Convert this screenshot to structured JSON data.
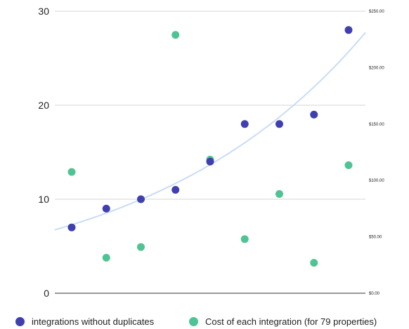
{
  "chart_data": {
    "type": "scatter",
    "title": "",
    "xlabel": "",
    "ylabel": "",
    "ylim": [
      0,
      30
    ],
    "y2lim": [
      0,
      250
    ],
    "y_ticks": [
      "0",
      "10",
      "20",
      "30"
    ],
    "y2_ticks": [
      "$0.00",
      "$50.00",
      "$100.00",
      "$150.00",
      "$200.00",
      "$250.00"
    ],
    "grid": true,
    "legend_position": "bottom",
    "x": [
      1,
      2,
      3,
      4,
      5,
      6,
      7,
      8,
      9
    ],
    "series": [
      {
        "name": "integrations without duplicates",
        "axis": "left",
        "color": "#3f3faf",
        "values": [
          7,
          9,
          10,
          11,
          14,
          18,
          18,
          19,
          28
        ]
      },
      {
        "name": "Cost of each integration (for 79 properties)",
        "axis": "right",
        "color": "#4fc394",
        "values": [
          107.5,
          31.5,
          41,
          229,
          118.5,
          48,
          88,
          27,
          113.5
        ]
      }
    ],
    "trendline": {
      "type": "exponential",
      "series": "integrations without duplicates",
      "color": "#c9dcf5"
    }
  }
}
